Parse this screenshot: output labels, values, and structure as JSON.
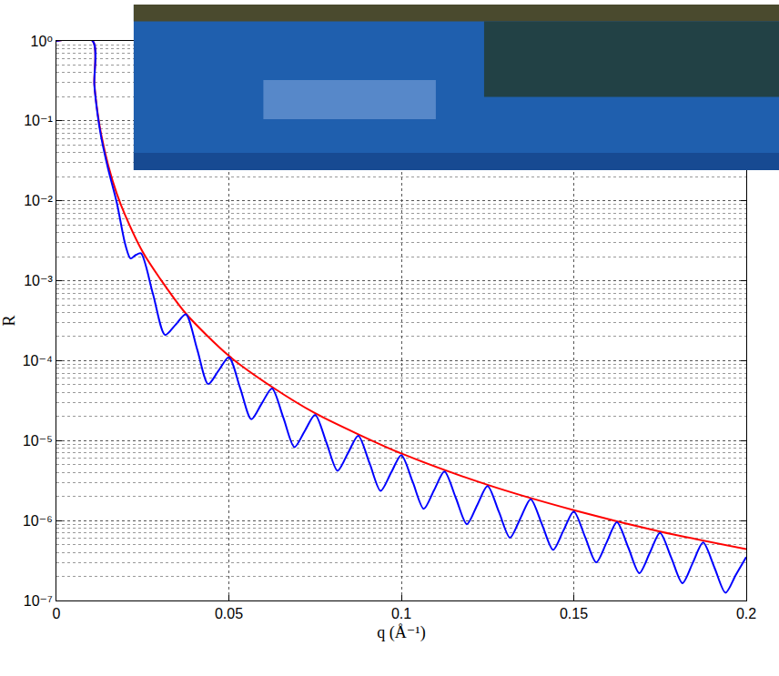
{
  "chart_data": {
    "type": "line",
    "x_label": "q (Å⁻¹)",
    "y_label": "R",
    "log": "y",
    "grid": true,
    "xlim": [
      0,
      0.2
    ],
    "ylim": [
      1e-07,
      1
    ],
    "xticks": [
      0,
      0.05,
      0.1,
      0.15,
      0.2
    ],
    "yticks": [
      {
        "value": 1e-07,
        "label": "10⁻⁷"
      },
      {
        "value": 1e-06,
        "label": "10⁻⁶"
      },
      {
        "value": 1e-05,
        "label": "10⁻⁵"
      },
      {
        "value": 0.0001,
        "label": "10⁻⁴"
      },
      {
        "value": 0.001,
        "label": "10⁻³"
      },
      {
        "value": 0.01,
        "label": "10⁻²"
      },
      {
        "value": 0.1,
        "label": "10⁻¹"
      },
      {
        "value": 1,
        "label": "10⁰"
      }
    ],
    "series": [
      {
        "color": "#ff0000",
        "x": [
          0,
          0.0105,
          0.011,
          0.012,
          0.013,
          0.015,
          0.0175,
          0.02,
          0.025,
          0.03,
          0.0375,
          0.05,
          0.0625,
          0.075,
          0.0875,
          0.1,
          0.125,
          0.15,
          0.175,
          0.2
        ],
        "values": [
          1,
          1,
          0.29,
          0.121,
          0.067,
          0.028,
          0.0123,
          0.0065,
          0.0023,
          0.00107,
          0.00039,
          0.000115,
          4.7e-05,
          2.2e-05,
          1.2e-05,
          6.9e-06,
          2.8e-06,
          1.35e-06,
          7.3e-07,
          4.4e-07
        ]
      },
      {
        "color": "#0000ff",
        "x": [
          0,
          0.0105,
          0.011,
          0.012,
          0.013,
          0.015,
          0.0175,
          0.02,
          0.0215,
          0.023,
          0.0245,
          0.028,
          0.0315,
          0.0345,
          0.0375,
          0.0408,
          0.044,
          0.047,
          0.05,
          0.0533,
          0.0565,
          0.0595,
          0.0625,
          0.0658,
          0.069,
          0.072,
          0.075,
          0.0783,
          0.0815,
          0.0845,
          0.0875,
          0.0908,
          0.094,
          0.097,
          0.1,
          0.1033,
          0.1065,
          0.1095,
          0.1125,
          0.1158,
          0.119,
          0.122,
          0.125,
          0.1283,
          0.1315,
          0.1345,
          0.1375,
          0.1408,
          0.144,
          0.147,
          0.15,
          0.1533,
          0.1565,
          0.1595,
          0.1625,
          0.1658,
          0.169,
          0.172,
          0.175,
          0.1783,
          0.1815,
          0.1845,
          0.1875,
          0.1908,
          0.194,
          0.197,
          0.2
        ],
        "values": [
          1,
          1,
          0.28,
          0.115,
          0.062,
          0.025,
          0.0095,
          0.0028,
          0.0019,
          0.0021,
          0.0022,
          0.00068,
          0.00021,
          0.00028,
          0.00038,
          0.000139,
          5.1e-05,
          7.5e-05,
          0.00011,
          4.5e-05,
          1.85e-05,
          2.9e-05,
          4.5e-05,
          1.93e-05,
          8.3e-06,
          1.32e-05,
          2.1e-05,
          9.4e-06,
          4.2e-06,
          6.95e-06,
          1.15e-05,
          5.2e-06,
          2.35e-06,
          3.94e-06,
          6.6e-06,
          3.04e-06,
          1.4e-06,
          2.4e-06,
          4.1e-06,
          1.92e-06,
          9e-07,
          1.56e-06,
          2.7e-06,
          1.28e-06,
          6.1e-07,
          1.06e-06,
          1.85e-06,
          8.9e-07,
          4.3e-07,
          7.5e-07,
          1.3e-06,
          6.2e-07,
          3e-07,
          5.3e-07,
          9.5e-07,
          4.6e-07,
          2.2e-07,
          3.9e-07,
          7e-07,
          3.4e-07,
          1.65e-07,
          2.96e-07,
          5.3e-07,
          2.57e-07,
          1.25e-07,
          2.1e-07,
          3.5e-07
        ]
      }
    ]
  }
}
